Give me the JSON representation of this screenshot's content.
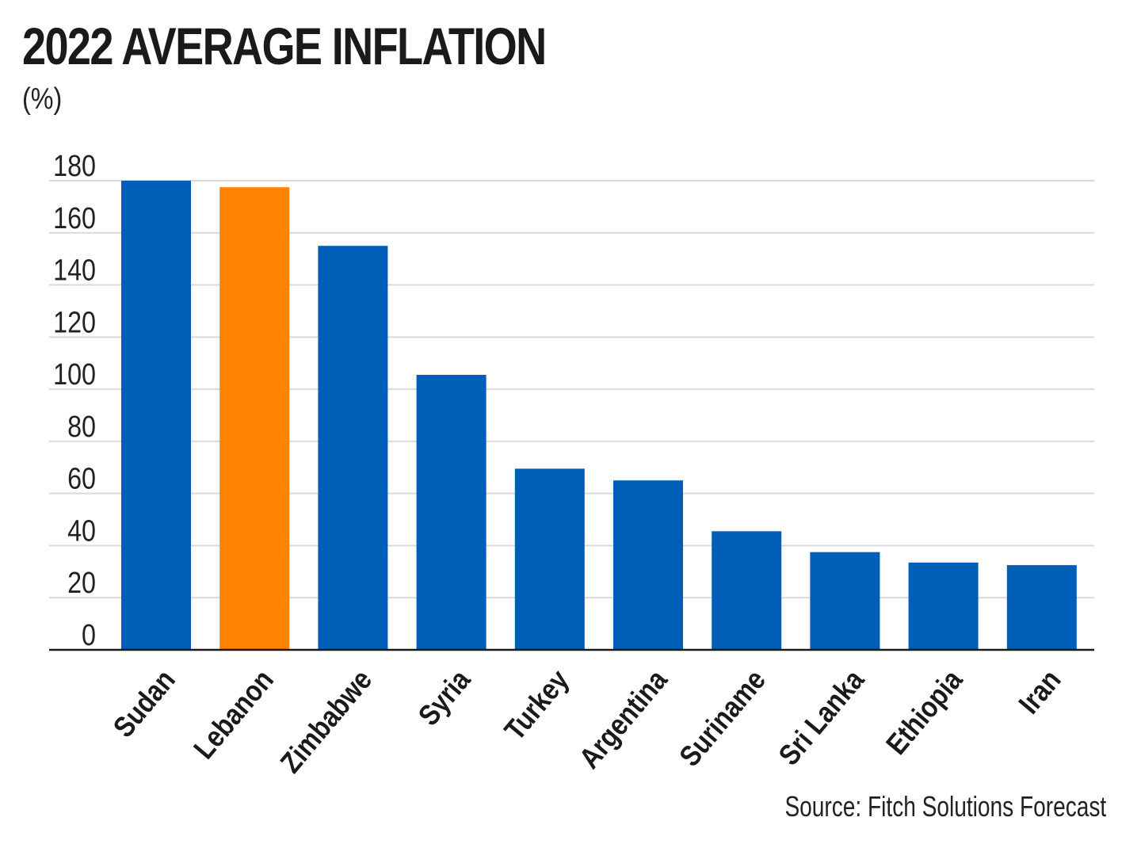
{
  "chart_data": {
    "type": "bar",
    "title": "2022 AVERAGE INFLATION",
    "subtitle": "(%)",
    "source": "Source: Fitch Solutions Forecast",
    "categories": [
      "Sudan",
      "Lebanon",
      "Zimbabwe",
      "Syria",
      "Turkey",
      "Argentina",
      "Suriname",
      "Sri Lanka",
      "Ethiopia",
      "Iran"
    ],
    "values": [
      180,
      177.5,
      155,
      105.5,
      69.5,
      65,
      45.5,
      37.5,
      33.5,
      32.5
    ],
    "ylim": [
      0,
      180
    ],
    "yticks": [
      0,
      20,
      40,
      60,
      80,
      100,
      120,
      140,
      160,
      180
    ],
    "grid": true,
    "legend": "none",
    "colors": {
      "default": "#005EB8",
      "highlight": "#FF8300",
      "highlight_category": "Lebanon",
      "grid": "#d9d9d9",
      "axis": "#1a1a1a"
    }
  }
}
